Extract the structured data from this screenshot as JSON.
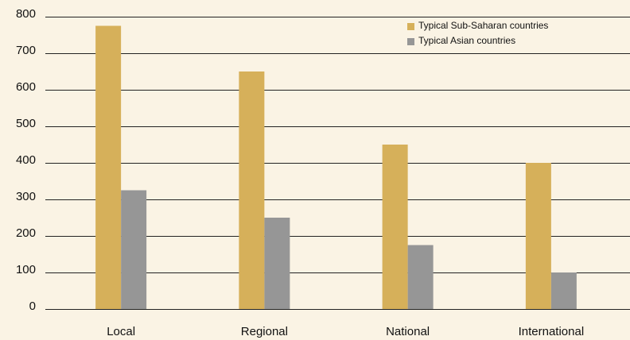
{
  "chart_data": {
    "type": "bar",
    "categories": [
      "Local",
      "Regional",
      "National",
      "International"
    ],
    "series": [
      {
        "name": "Typical Sub-Saharan countries",
        "color": "#d6b05a",
        "values": [
          775,
          650,
          450,
          400
        ]
      },
      {
        "name": "Typical Asian countries",
        "color": "#969696",
        "values": [
          325,
          250,
          175,
          100
        ]
      }
    ],
    "ylim": [
      0,
      800
    ],
    "yticks": [
      0,
      100,
      200,
      300,
      400,
      500,
      600,
      700,
      800
    ],
    "grid": true,
    "legend": "top-right"
  }
}
